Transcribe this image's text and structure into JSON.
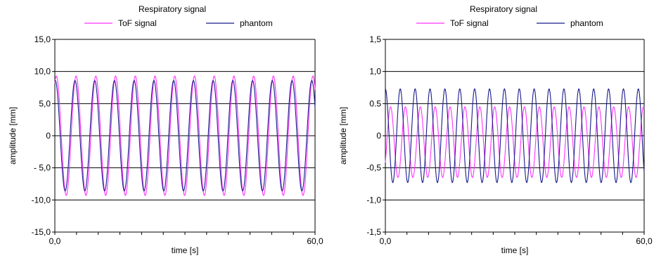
{
  "chart_data": [
    {
      "type": "line",
      "title": "Respiratory signal",
      "xlabel": "time [s]",
      "ylabel": "amplitude [mm]",
      "xlim": [
        0,
        60
      ],
      "ylim": [
        -15,
        15
      ],
      "grid": "horizontal",
      "legend": "top-center",
      "x_tick_labels": [
        "0,0",
        "60,0"
      ],
      "y_ticks": [
        {
          "value": 15,
          "label": "15,0"
        },
        {
          "value": 10,
          "label": "10,0"
        },
        {
          "value": 5,
          "label": "5,0"
        },
        {
          "value": 0,
          "label": "0"
        },
        {
          "value": -5,
          "label": "- 5,0"
        },
        {
          "value": -10,
          "label": "-10,0"
        },
        {
          "value": -15,
          "label": "-15,0"
        }
      ],
      "series": [
        {
          "name": "ToF signal",
          "color": "#ff33ff",
          "period_s": 4.55,
          "amplitude": 9.3,
          "offset": 0,
          "phase_s": 0.35
        },
        {
          "name": "phantom",
          "color": "#1a1a8c",
          "period_s": 4.55,
          "amplitude": 8.6,
          "offset": 0,
          "phase_s": 0.1
        }
      ]
    },
    {
      "type": "line",
      "title": "Respiratory signal",
      "xlabel": "time [s]",
      "ylabel": "amplitude [mm]",
      "xlim": [
        0,
        60
      ],
      "ylim": [
        -1.5,
        1.5
      ],
      "grid": "horizontal",
      "legend": "top-center",
      "x_tick_labels": [
        "0,0",
        "60,0"
      ],
      "y_ticks": [
        {
          "value": 1.5,
          "label": "1,5"
        },
        {
          "value": 1.0,
          "label": "1,0"
        },
        {
          "value": 0.5,
          "label": "0.5"
        },
        {
          "value": 0,
          "label": "0"
        },
        {
          "value": -0.5,
          "label": "-0,5"
        },
        {
          "value": -1.0,
          "label": "-1,0"
        },
        {
          "value": -1.5,
          "label": "-1,5"
        }
      ],
      "series": [
        {
          "name": "ToF signal",
          "color": "#ff33ff",
          "period_s": 3.45,
          "amplitude": 0.55,
          "offset": -0.1,
          "phase_s": 1.2
        },
        {
          "name": "phantom",
          "color": "#1a1a8c",
          "period_s": 3.45,
          "amplitude": 0.73,
          "offset": 0,
          "phase_s": 0
        }
      ]
    }
  ]
}
